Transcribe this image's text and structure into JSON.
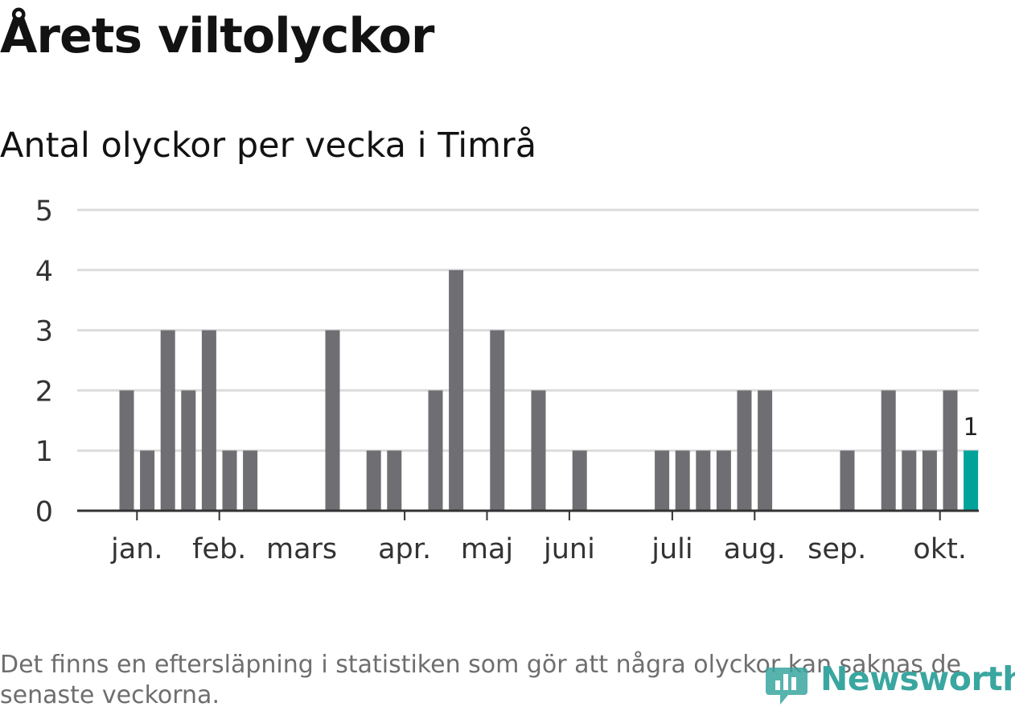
{
  "chart_data": {
    "type": "bar",
    "title": "Årets viltolyckor",
    "subtitle": "Antal olyckor per vecka i Timrå",
    "xlabel": "",
    "ylabel": "",
    "ylim": [
      0,
      5
    ],
    "yticks": [
      0,
      1,
      2,
      3,
      4,
      5
    ],
    "grid": true,
    "weeks": [
      1,
      2,
      3,
      4,
      5,
      6,
      7,
      8,
      9,
      10,
      11,
      12,
      13,
      14,
      15,
      16,
      17,
      18,
      19,
      20,
      21,
      22,
      23,
      24,
      25,
      26,
      27,
      28,
      29,
      30,
      31,
      32,
      33,
      34,
      35,
      36,
      37,
      38,
      39,
      40,
      41,
      42
    ],
    "values": [
      2,
      1,
      3,
      2,
      3,
      1,
      1,
      0,
      0,
      0,
      3,
      0,
      1,
      1,
      0,
      2,
      4,
      0,
      3,
      0,
      2,
      0,
      1,
      0,
      0,
      0,
      1,
      1,
      1,
      1,
      2,
      2,
      0,
      0,
      0,
      1,
      0,
      2,
      1,
      1,
      2,
      1
    ],
    "highlight_index": 41,
    "highlight_label": "1",
    "month_labels": [
      {
        "label": "jan.",
        "week": 1.5
      },
      {
        "label": "feb.",
        "week": 5.5
      },
      {
        "label": "mars",
        "week": 9.5
      },
      {
        "label": "apr.",
        "week": 14.5
      },
      {
        "label": "maj",
        "week": 18.5
      },
      {
        "label": "juni",
        "week": 22.5
      },
      {
        "label": "juli",
        "week": 27.5
      },
      {
        "label": "aug.",
        "week": 31.5
      },
      {
        "label": "sep.",
        "week": 35.5
      },
      {
        "label": "okt.",
        "week": 40.5
      }
    ],
    "month_ticks": [
      1.5,
      5.5,
      14.5,
      18.5,
      22.5,
      27.5,
      31.5,
      40.5
    ],
    "colors": {
      "bar": "#6f6e73",
      "highlight": "#00a39a",
      "grid": "#dcdcdc",
      "axis": "#333333"
    }
  },
  "footnote": "Det finns en eftersläpning i statistiken som gör att några olyckor kan saknas de senaste veckorna.",
  "logo": {
    "text": "Newsworthy",
    "icon": "newsworthy-logo-icon",
    "color": "#3aa6a0"
  }
}
